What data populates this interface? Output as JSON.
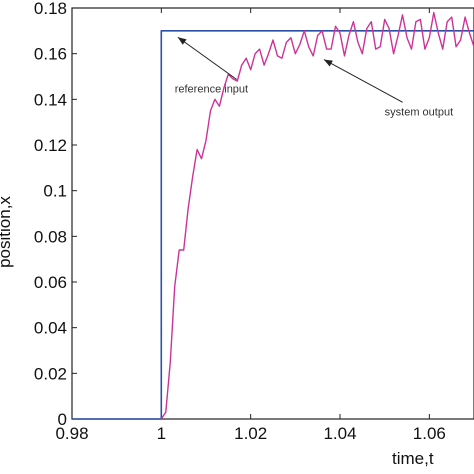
{
  "chart_data": {
    "type": "line",
    "title": "",
    "xlabel": "time,t",
    "ylabel": "position,x",
    "xlim": [
      0.98,
      1.07
    ],
    "ylim": [
      0,
      0.18
    ],
    "x_ticks": [
      "0.98",
      "1",
      "1.02",
      "1.04",
      "1.06"
    ],
    "x_tick_values": [
      0.98,
      1.0,
      1.02,
      1.04,
      1.06
    ],
    "y_ticks": [
      "0",
      "0.02",
      "0.04",
      "0.06",
      "0.08",
      "0.1",
      "0.12",
      "0.14",
      "0.16",
      "0.18"
    ],
    "y_tick_values": [
      0,
      0.02,
      0.04,
      0.06,
      0.08,
      0.1,
      0.12,
      0.14,
      0.16,
      0.18
    ],
    "grid": false,
    "series": [
      {
        "name": "reference input",
        "color": "#2a4fa8",
        "x": [
          0.98,
          1.0,
          1.0,
          1.07
        ],
        "y": [
          0,
          0,
          0.17,
          0.17
        ]
      },
      {
        "name": "system output",
        "color": "#cc3399",
        "x": [
          1.0,
          1.001,
          1.002,
          1.003,
          1.004,
          1.005,
          1.006,
          1.007,
          1.008,
          1.009,
          1.01,
          1.011,
          1.012,
          1.013,
          1.014,
          1.015,
          1.016,
          1.017,
          1.018,
          1.019,
          1.02,
          1.021,
          1.022,
          1.023,
          1.024,
          1.025,
          1.026,
          1.027,
          1.028,
          1.029,
          1.03,
          1.031,
          1.032,
          1.033,
          1.034,
          1.035,
          1.036,
          1.037,
          1.038,
          1.039,
          1.04,
          1.041,
          1.042,
          1.043,
          1.044,
          1.045,
          1.046,
          1.047,
          1.048,
          1.049,
          1.05,
          1.051,
          1.052,
          1.053,
          1.054,
          1.055,
          1.056,
          1.057,
          1.058,
          1.059,
          1.06,
          1.061,
          1.062,
          1.063,
          1.064,
          1.065,
          1.066,
          1.067,
          1.068,
          1.069,
          1.07
        ],
        "y": [
          0.0,
          0.003,
          0.025,
          0.058,
          0.074,
          0.074,
          0.092,
          0.106,
          0.118,
          0.114,
          0.122,
          0.135,
          0.14,
          0.137,
          0.145,
          0.151,
          0.149,
          0.148,
          0.155,
          0.158,
          0.153,
          0.16,
          0.162,
          0.155,
          0.16,
          0.166,
          0.159,
          0.158,
          0.165,
          0.167,
          0.16,
          0.164,
          0.17,
          0.163,
          0.159,
          0.168,
          0.17,
          0.162,
          0.162,
          0.172,
          0.169,
          0.159,
          0.168,
          0.174,
          0.165,
          0.16,
          0.171,
          0.174,
          0.162,
          0.163,
          0.175,
          0.171,
          0.16,
          0.168,
          0.177,
          0.167,
          0.162,
          0.174,
          0.175,
          0.162,
          0.167,
          0.178,
          0.169,
          0.162,
          0.174,
          0.176,
          0.163,
          0.166,
          0.176,
          0.169,
          0.163
        ]
      }
    ],
    "annotations": [
      {
        "text": "reference input",
        "x": 1.003,
        "y": 0.143,
        "arrow_to": [
          1.0037,
          0.1672
        ]
      },
      {
        "text": "system output",
        "x": 1.05,
        "y": 0.133,
        "arrow_to": [
          1.0364,
          0.1574
        ]
      }
    ]
  }
}
